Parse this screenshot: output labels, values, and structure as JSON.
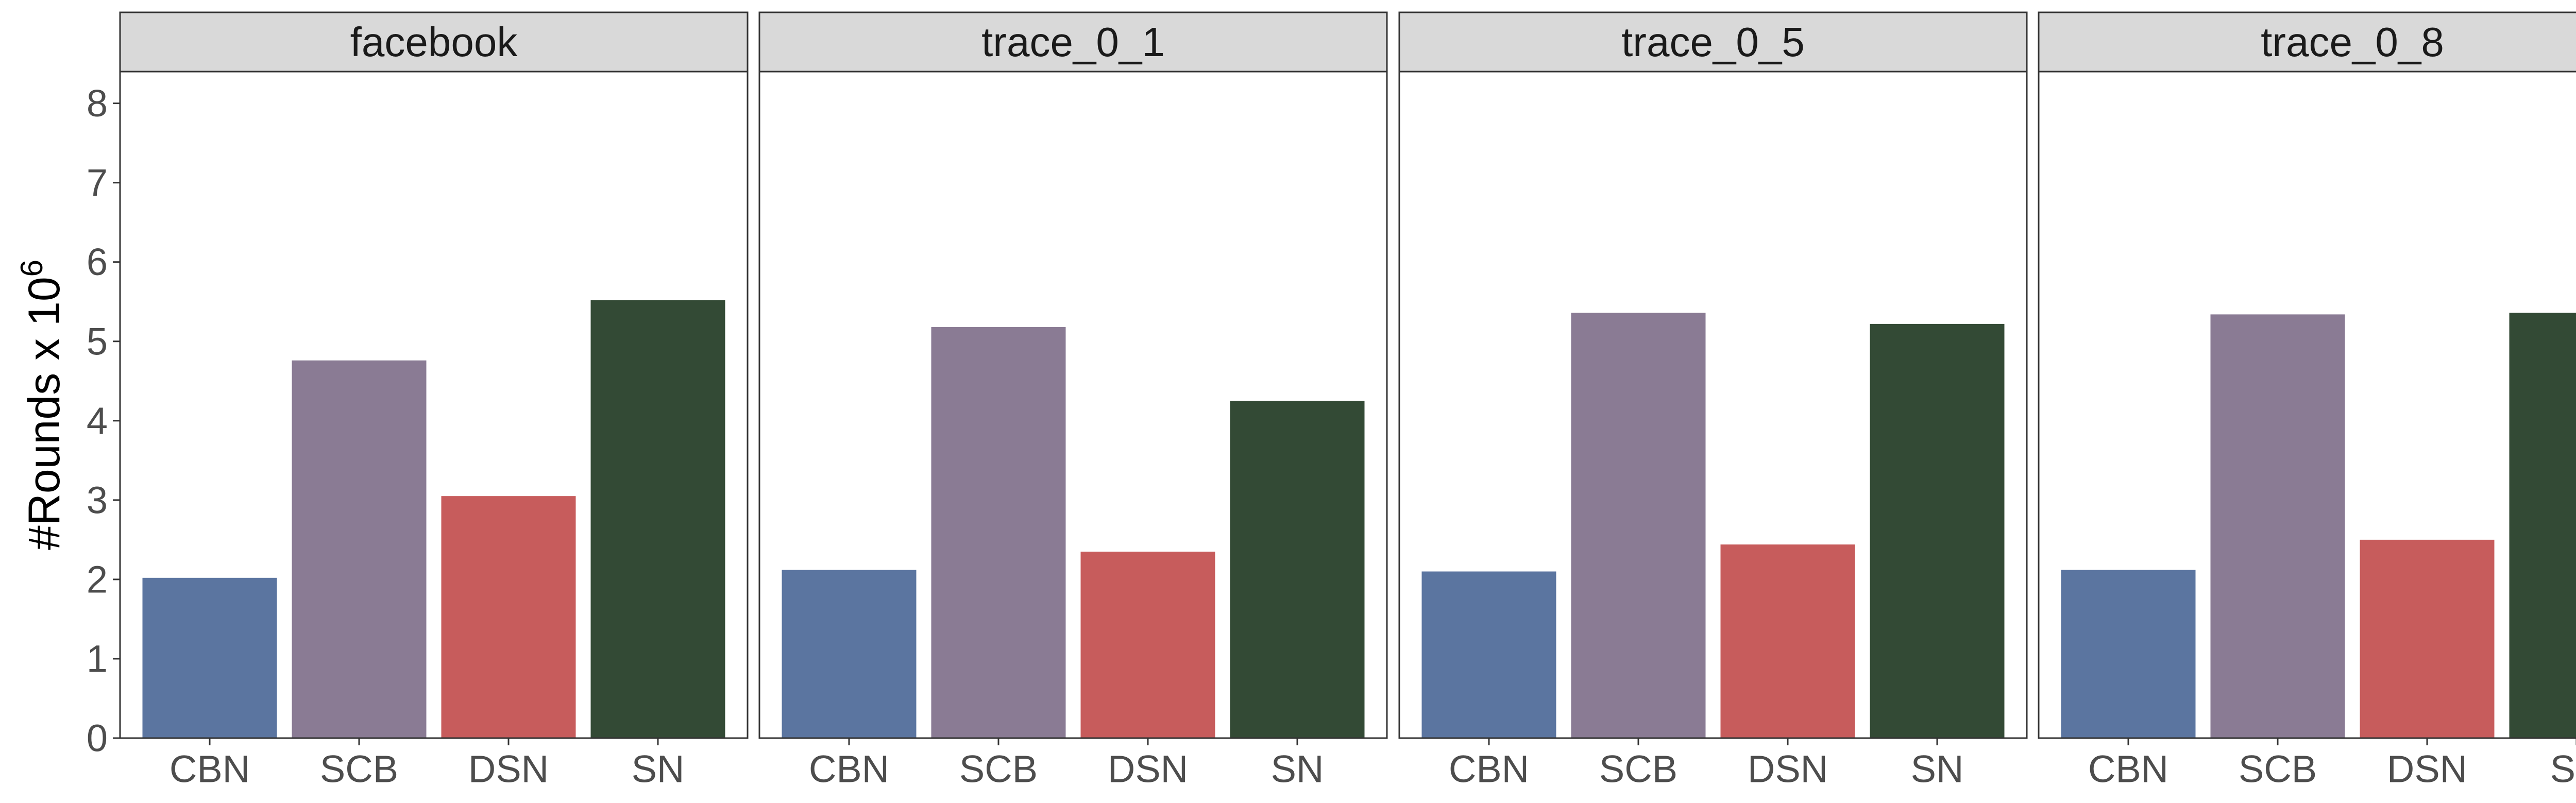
{
  "chart_data": {
    "type": "bar",
    "ylabel": "#Rounds x 10",
    "ylabel_superscript": "6",
    "ylim": [
      0,
      8.4
    ],
    "yticks": [
      0,
      1,
      2,
      3,
      4,
      5,
      6,
      7,
      8
    ],
    "categories": [
      "CBN",
      "SCB",
      "DSN",
      "SN"
    ],
    "colors": {
      "CBN": "#5b75a0",
      "SCB": "#8a7b94",
      "DSN": "#c75c5c",
      "SN": "#334a35"
    },
    "facets": [
      {
        "title": "facebook",
        "values": [
          2.02,
          4.76,
          3.05,
          5.52
        ]
      },
      {
        "title": "trace_0_1",
        "values": [
          2.12,
          5.18,
          2.35,
          4.25
        ]
      },
      {
        "title": "trace_0_5",
        "values": [
          2.1,
          5.36,
          2.44,
          5.22
        ]
      },
      {
        "title": "trace_0_8",
        "values": [
          2.12,
          5.34,
          2.5,
          5.36
        ]
      }
    ],
    "grid": false,
    "legend": "none"
  }
}
